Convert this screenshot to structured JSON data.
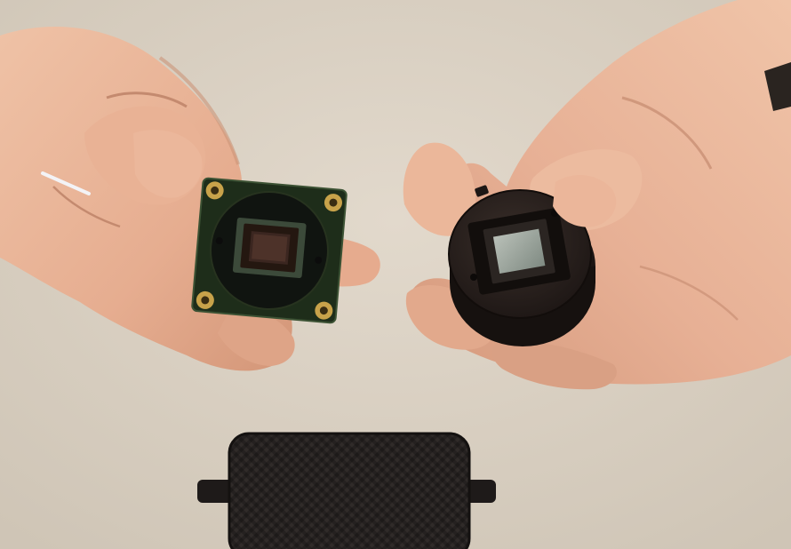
{
  "scene": {
    "background_color": "#d9d0c2",
    "skin_color": "#e9b495",
    "skin_shadow": "#c98e73",
    "pcb_color": "#20301c",
    "pad_color": "#c8a24a",
    "sensor_color": "#1e140e",
    "mount_color": "#2a211d",
    "filter_glass_color": "#9aa39a",
    "case_color": "#231f1d"
  },
  "objects": [
    "left-hand",
    "right-hand",
    "sensor-board",
    "lens-mount",
    "carbon-case"
  ]
}
